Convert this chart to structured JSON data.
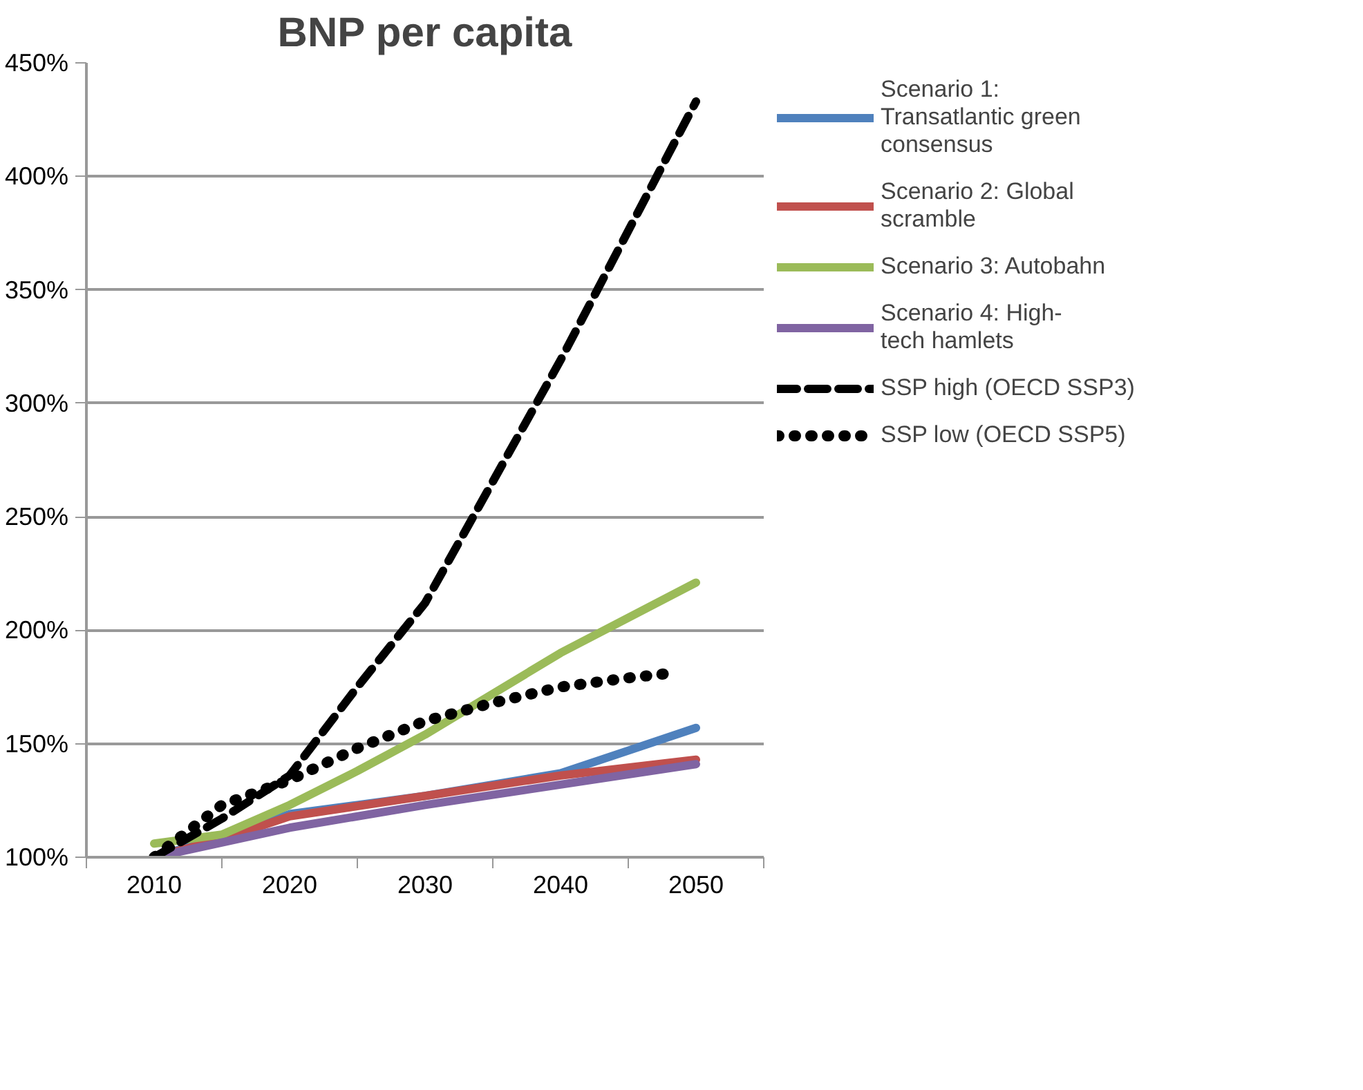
{
  "chart_data": {
    "type": "line",
    "title": "BNP per capita",
    "xlim": [
      2005,
      2055
    ],
    "xticks": [
      {
        "value": 2005,
        "label": null
      },
      2010,
      {
        "value": 2015,
        "label": null
      },
      2020,
      {
        "value": 2025,
        "label": null
      },
      2030,
      {
        "value": 2035,
        "label": null
      },
      2040,
      {
        "value": 2045,
        "label": null
      },
      2050,
      {
        "value": 2055,
        "label": null
      }
    ],
    "ylim": [
      100,
      450
    ],
    "yticks": [
      {
        "value": 100,
        "label": "100%"
      },
      {
        "value": 150,
        "label": "150%"
      },
      {
        "value": 200,
        "label": "200%"
      },
      {
        "value": 250,
        "label": "250%"
      },
      {
        "value": 300,
        "label": "300%"
      },
      {
        "value": 350,
        "label": "350%"
      },
      {
        "value": 400,
        "label": "400%"
      },
      {
        "value": 450,
        "label": "450%"
      }
    ],
    "grid": "y",
    "legend": "right",
    "series": [
      {
        "name": "Scenario 1: Transatlantic green consensus",
        "color": "#4f81bd",
        "line_style": "solid",
        "x": [
          2010,
          2015,
          2020,
          2025,
          2030,
          2035,
          2040,
          2045,
          2050
        ],
        "values": [
          100,
          109,
          119,
          123,
          127,
          132,
          137,
          147,
          157
        ]
      },
      {
        "name": "Scenario 2: Global scramble",
        "color": "#c0504d",
        "line_style": "solid",
        "x": [
          2010,
          2015,
          2020,
          2030,
          2040,
          2050
        ],
        "values": [
          100,
          108,
          118,
          127,
          136,
          143
        ]
      },
      {
        "name": "Scenario 3: Autobahn",
        "color": "#9bbb59",
        "line_style": "solid",
        "x": [
          2010,
          2015,
          2020,
          2025,
          2030,
          2040,
          2050
        ],
        "values": [
          106,
          110,
          123,
          138,
          154,
          190,
          221
        ]
      },
      {
        "name": "Scenario 4: High-tech hamlets",
        "color": "#8064a2",
        "line_style": "solid",
        "x": [
          2010,
          2020,
          2030,
          2040,
          2050
        ],
        "values": [
          100,
          113,
          123,
          132,
          141
        ]
      },
      {
        "name": "SSP high (OECD SSP3)",
        "color": "#000000",
        "line_style": "dashed",
        "x": [
          2010,
          2015,
          2020,
          2025,
          2030,
          2040,
          2050
        ],
        "values": [
          100,
          117,
          136,
          175,
          212,
          319,
          433
        ]
      },
      {
        "name": "SSP low (OECD SSP5)",
        "color": "#000000",
        "line_style": "dotted",
        "x": [
          2010,
          2015,
          2020,
          2025,
          2030,
          2035,
          2040,
          2045,
          2048
        ],
        "values": [
          100,
          123,
          134,
          148,
          160,
          168,
          175,
          179,
          181
        ]
      }
    ]
  }
}
